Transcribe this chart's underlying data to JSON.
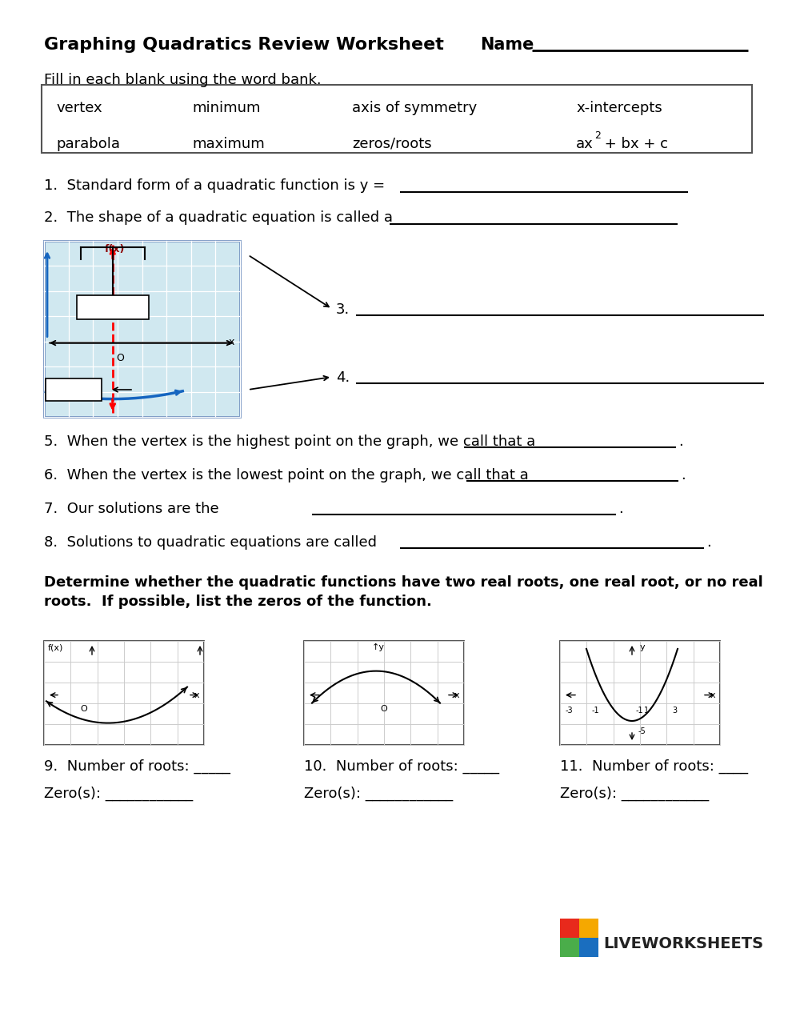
{
  "title": "Graphing Quadratics Review Worksheet",
  "name_label": "Name",
  "fill_instruction": "Fill in each blank using the word bank.",
  "word_bank_row1": [
    "vertex",
    "minimum",
    "axis of symmetry",
    "x-intercepts"
  ],
  "word_bank_row2_plain": [
    "parabola",
    "maximum",
    "zeros/roots"
  ],
  "q1": "1.  Standard form of a quadratic function is y = ",
  "q2": "2.  The shape of a quadratic equation is called a ",
  "q3_label": "3.",
  "q4_label": "4.",
  "q5": "5.  When the vertex is the highest point on the graph, we call that a",
  "q6": "6.  When the vertex is the lowest point on the graph, we call that a",
  "q7": "7.  Our solutions are the",
  "q8": "8.  Solutions to quadratic equations are called",
  "determine_line1": "Determine whether the quadratic functions have two real roots, one real root, or no real",
  "determine_line2": "roots.  If possible, list the zeros of the function.",
  "q9_label": "9.  Number of roots: _____",
  "q10_label": "10.  Number of roots: _____",
  "q11_label": "11.  Number of roots: ____",
  "zeros9": "Zero(s): ____________",
  "zeros10": "Zero(s): ____________",
  "zeros11": "Zero(s): ____________",
  "bg_color": "#ffffff",
  "text_color": "#000000",
  "lw_colors": [
    "#e8291c",
    "#f5a800",
    "#4aad4a",
    "#1a6ebf"
  ]
}
